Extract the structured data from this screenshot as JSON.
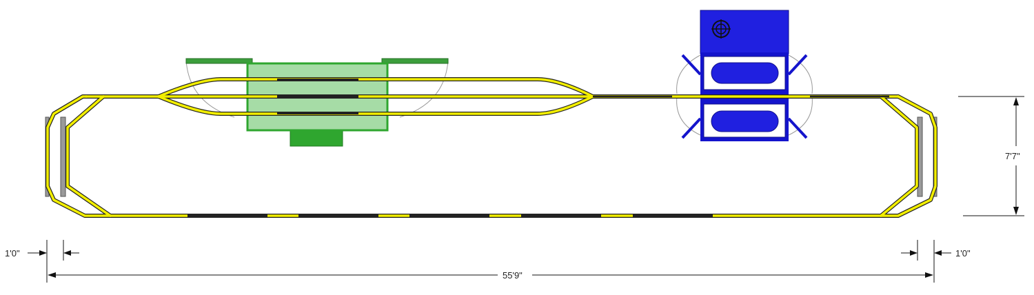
{
  "dimensions": {
    "height": "7'7\"",
    "overall_length": "55'9\"",
    "left_offset": "1'0\"",
    "right_offset": "1'0\""
  },
  "colors": {
    "track_rail": "#f2ee00",
    "track_edge": "#222222",
    "station_green": "#2fa62f",
    "station_platform": "#a6dca6",
    "station_roof": "#3c9e3c",
    "maintenance_blue": "#1414cc",
    "maintenance_fill": "#2020e0",
    "pad_grey": "#9a9a9a"
  },
  "icons": {
    "station_walkway": "rectangle",
    "maintenance_target": "crosshair-icon"
  }
}
